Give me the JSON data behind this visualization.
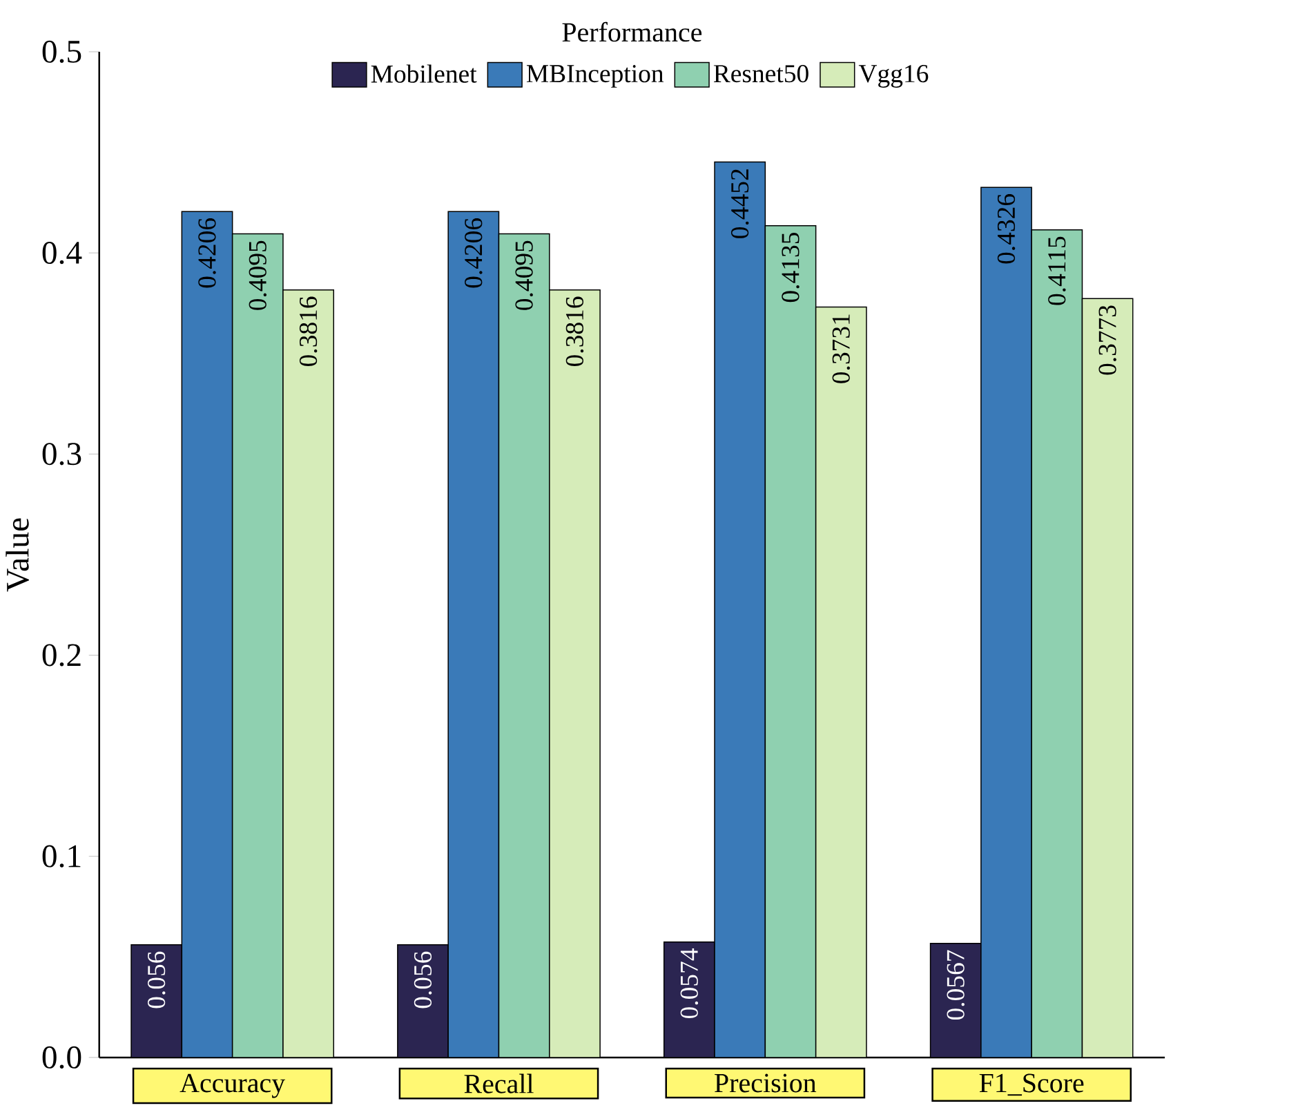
{
  "chart_data": {
    "type": "bar",
    "title": "Performance",
    "ylabel": "Value",
    "categories": [
      "Accuracy",
      "Recall",
      "Precision",
      "F1_Score"
    ],
    "series": [
      {
        "name": "Mobilenet",
        "color": "#2b2551",
        "values": [
          0.056,
          0.056,
          0.0574,
          0.0567
        ],
        "value_labels": [
          "0.056",
          "0.056",
          "0.0574",
          "0.0567"
        ]
      },
      {
        "name": "MBInception",
        "color": "#3a7ab8",
        "values": [
          0.4206,
          0.4206,
          0.4452,
          0.4326
        ],
        "value_labels": [
          "0.4206",
          "0.4206",
          "0.4452",
          "0.4326"
        ]
      },
      {
        "name": "Resnet50",
        "color": "#8fd0b0",
        "values": [
          0.4095,
          0.4095,
          0.4135,
          0.4115
        ],
        "value_labels": [
          "0.4095",
          "0.4095",
          "0.4135",
          "0.4115"
        ]
      },
      {
        "name": "Vgg16",
        "color": "#d6ecb9",
        "values": [
          0.3816,
          0.3816,
          0.3731,
          0.3773
        ],
        "value_labels": [
          "0.3816",
          "0.3816",
          "0.3731",
          "0.3773"
        ]
      }
    ],
    "ylim": [
      0,
      0.5
    ],
    "yticks": [
      {
        "value": 0,
        "label": "0.0"
      },
      0.1,
      0.2,
      0.3,
      0.4,
      0.5
    ],
    "legend": "top"
  }
}
